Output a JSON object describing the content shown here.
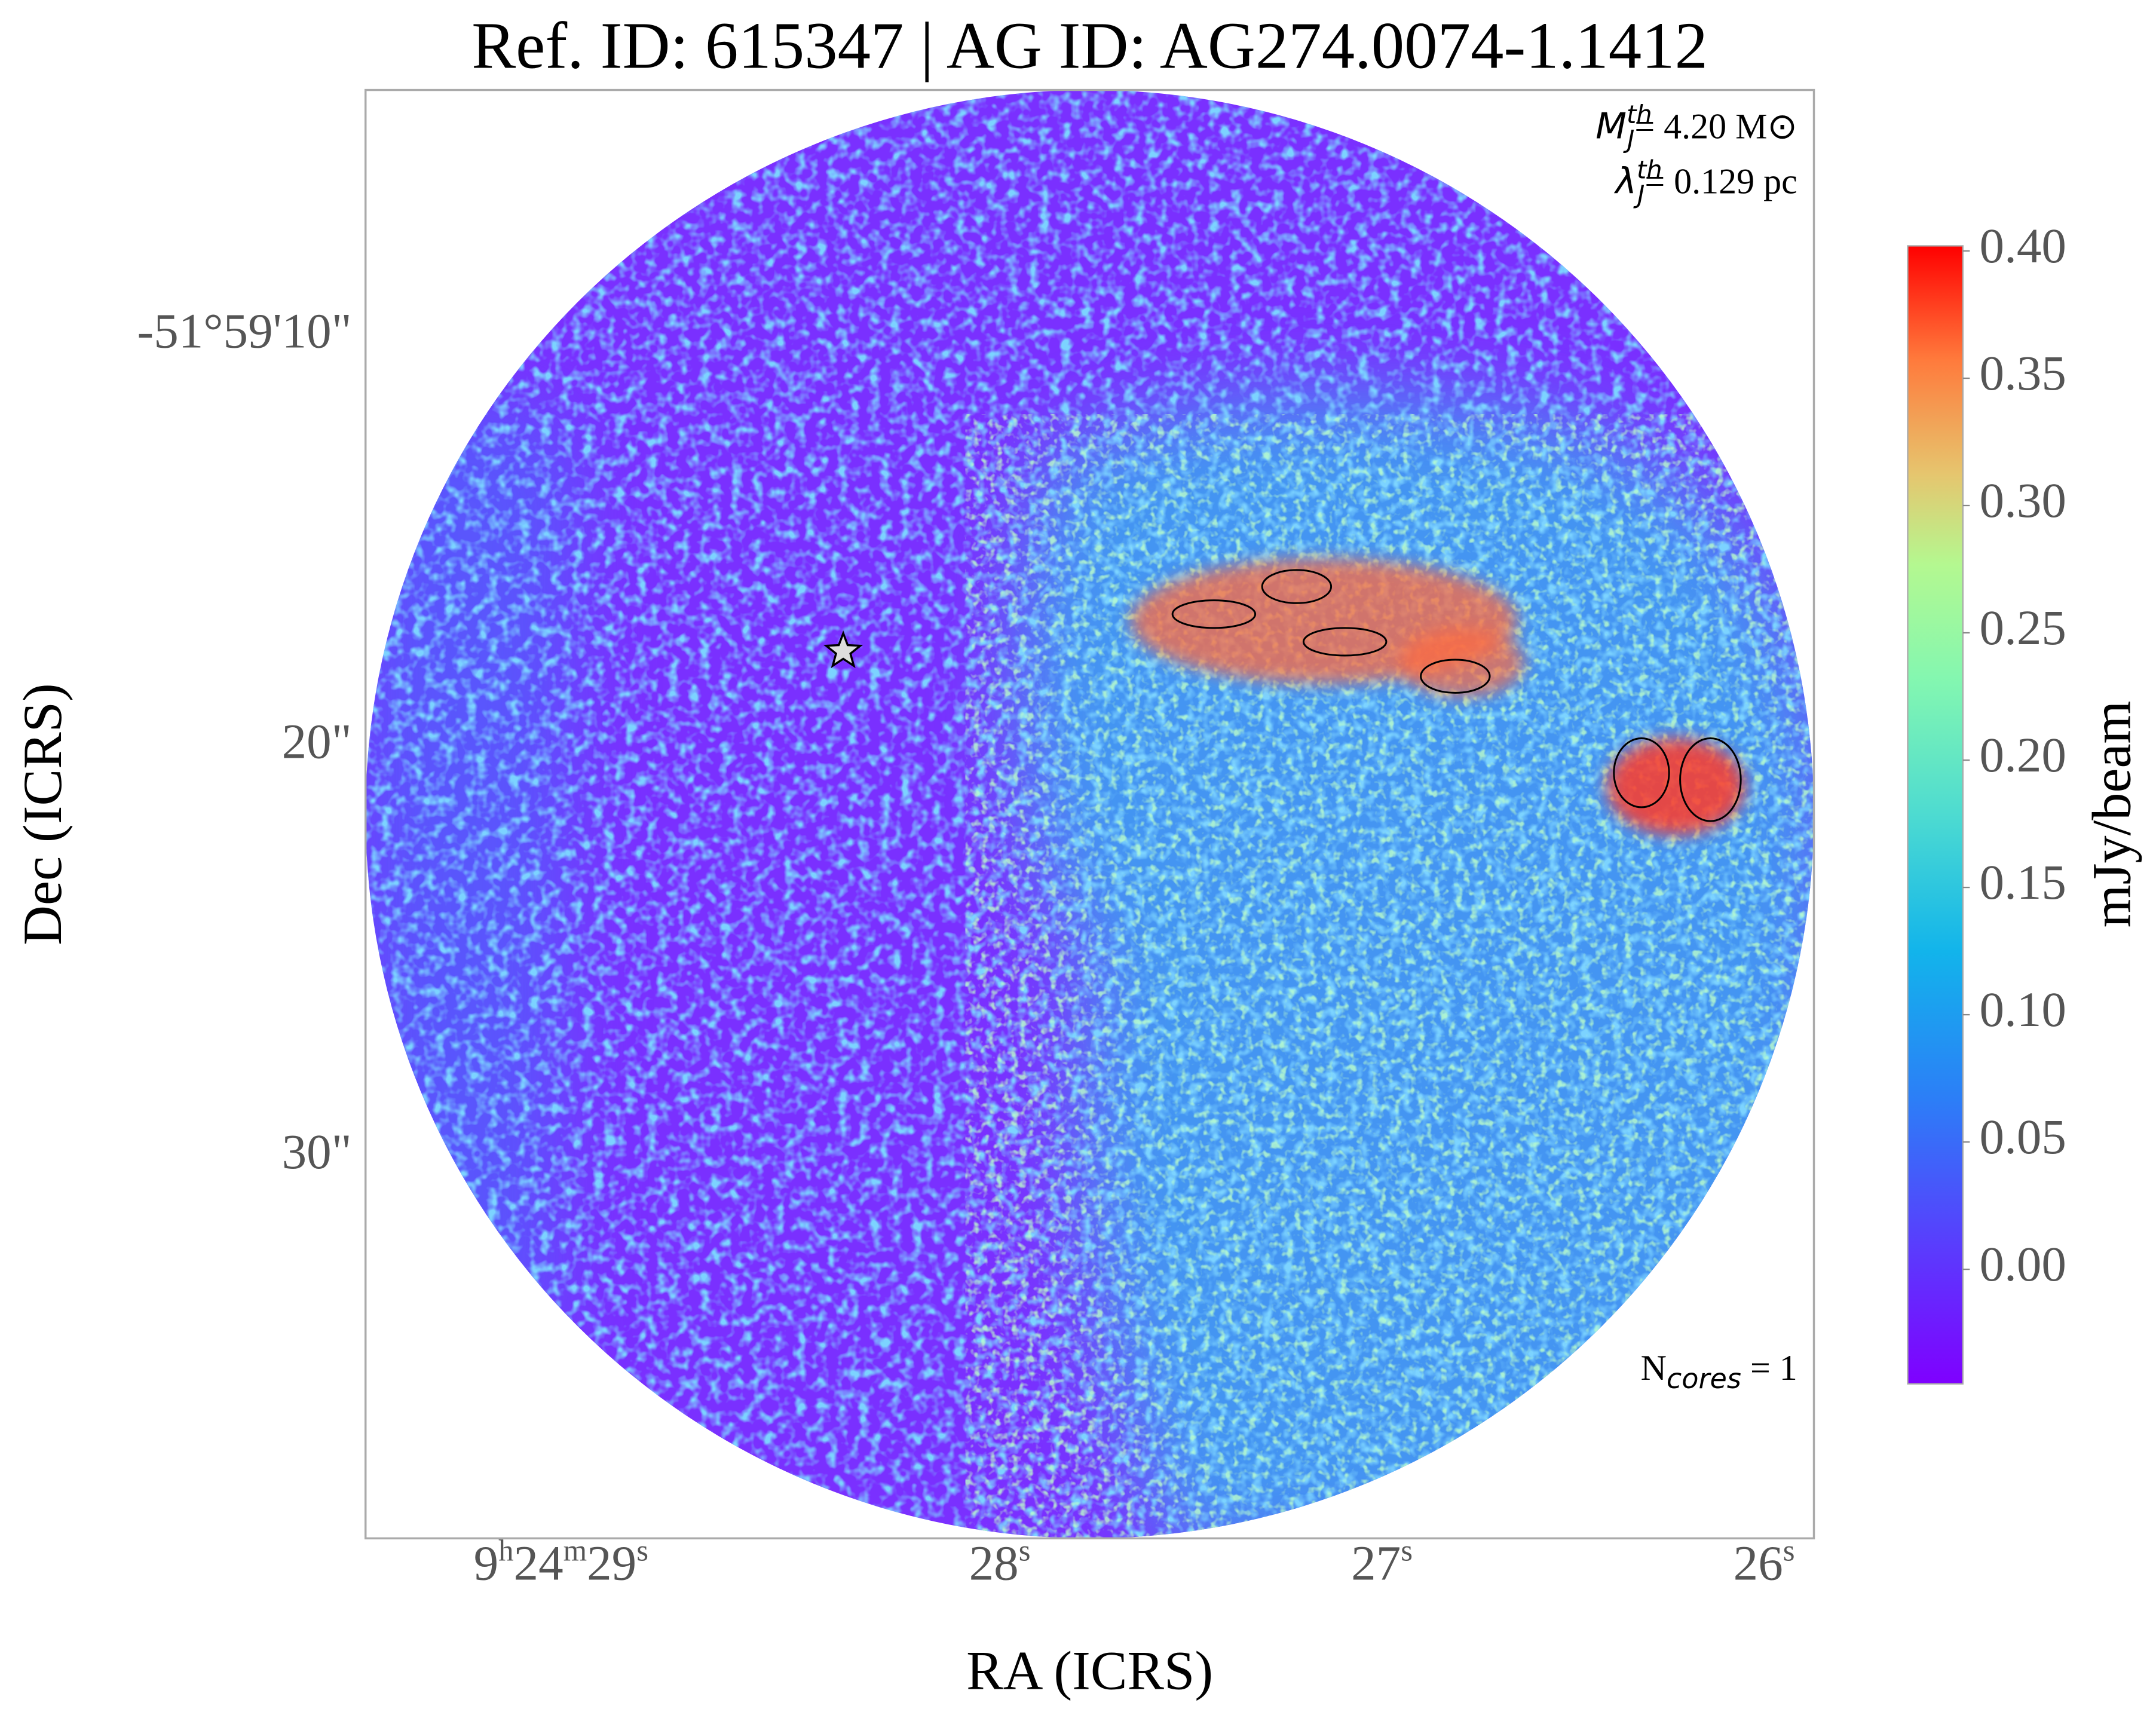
{
  "chart_data": {
    "type": "image",
    "title": "Ref. ID: 615347 | AG ID: AG274.0074-1.1412",
    "x_label": "RA (ICRS)",
    "y_label": "Dec (ICRS)",
    "colorbar_label": "mJy/beam",
    "xlim": [
      29.74,
      25.95
    ],
    "xticks": [
      {
        "value": 29,
        "label": "9h24m29s"
      },
      {
        "value": 28,
        "label": "28s"
      },
      {
        "value": 27,
        "label": "27s"
      },
      {
        "value": 26,
        "label": "26s"
      }
    ],
    "ylim": [
      39.3,
      4.0
    ],
    "yticks": [
      {
        "value": 10,
        "label": "-51°59'10\""
      },
      {
        "value": 20,
        "label": "20\""
      },
      {
        "value": 30,
        "label": "30\""
      }
    ],
    "colorbar_lim": [
      -0.045,
      0.402
    ],
    "colorbar_ticks": [
      {
        "value": 0,
        "label": "0.00"
      },
      {
        "value": 0.05,
        "label": "0.05"
      },
      {
        "value": 0.1,
        "label": "0.10"
      },
      {
        "value": 0.15,
        "label": "0.15"
      },
      {
        "value": 0.2,
        "label": "0.20"
      },
      {
        "value": 0.25,
        "label": "0.25"
      },
      {
        "value": 0.3,
        "label": "0.30"
      },
      {
        "value": 0.35,
        "label": "0.35"
      },
      {
        "value": 0.4,
        "label": "0.40"
      }
    ],
    "annotations": [
      {
        "symbol": "M",
        "sub": "J",
        "sup": "th",
        "text": "= 4.20 M⊙"
      },
      {
        "symbol": "λ",
        "sub": "J",
        "sup": "th",
        "text": "= 0.129 pc"
      },
      {
        "symbol": "N",
        "sub": "cores",
        "text": " = 1"
      }
    ],
    "marker": {
      "x": 28.49,
      "y": 17.68
    }
  }
}
